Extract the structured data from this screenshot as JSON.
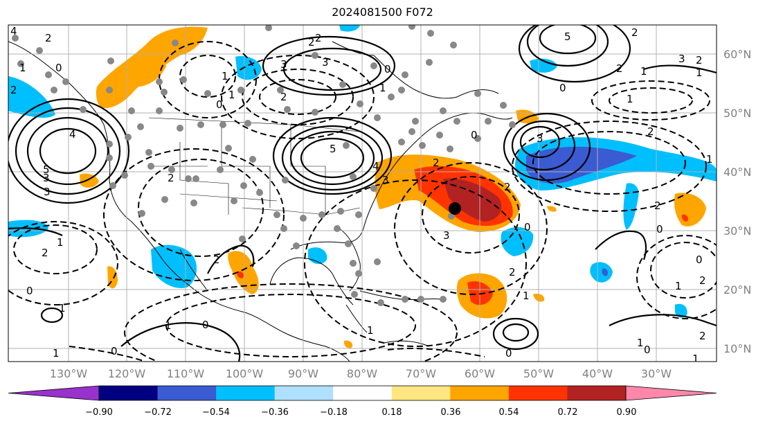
{
  "title": "2024081500 F072",
  "latitude_labels": [
    "60°N",
    "50°N",
    "40°N",
    "30°N",
    "20°N",
    "10°N"
  ],
  "longitude_labels": [
    "130°W",
    "120°W",
    "110°W",
    "100°W",
    "90°W",
    "80°W",
    "70°W",
    "60°W",
    "50°W",
    "40°W",
    "30°W"
  ],
  "colorbar": {
    "ticks": [
      "−0.90",
      "−0.72",
      "−0.54",
      "−0.36",
      "−0.18",
      "0.18",
      "0.36",
      "0.54",
      "0.72",
      "0.90"
    ],
    "colors": [
      "#9932cc",
      "#000080",
      "#3a5bd1",
      "#00bfff",
      "#b0e0ff",
      "#ffffff",
      "#ffe680",
      "#ffa500",
      "#ff3300",
      "#b22222",
      "#ff88aa"
    ]
  },
  "contour_labels": [
    "4",
    "2",
    "0",
    "1",
    "2",
    "3",
    "4",
    "5",
    "2",
    "3",
    "1",
    "0",
    "1",
    "2",
    "1",
    "2",
    "5",
    "4",
    "3",
    "2",
    "1",
    "0",
    "2",
    "1",
    "0",
    "3",
    "2",
    "3",
    "1",
    "0",
    "5",
    "3",
    "1",
    "2",
    "2",
    "0",
    "1",
    "2",
    "1",
    "2",
    "3",
    "1",
    "2",
    "0",
    "2",
    "1",
    "2",
    "0",
    "1",
    "0",
    "1",
    "0",
    "2",
    "2",
    "3",
    "1",
    "0",
    "0",
    "1",
    "0",
    "1",
    "2"
  ],
  "marker": "storm-center"
}
